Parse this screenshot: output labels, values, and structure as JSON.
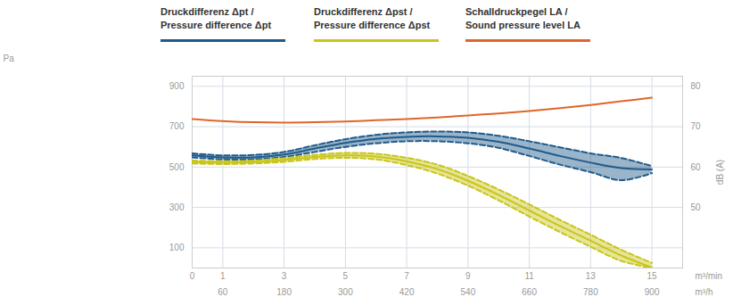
{
  "chart_data": {
    "type": "line",
    "x": [
      0,
      1,
      2,
      3,
      4,
      5,
      6,
      7,
      8,
      9,
      10,
      11,
      12,
      13,
      14,
      15
    ],
    "xlim": [
      0,
      16
    ],
    "xticks": [
      0,
      1,
      3,
      5,
      7,
      9,
      11,
      13,
      15
    ],
    "xlabel": "m³/min",
    "x2lim": [
      0,
      960
    ],
    "x2ticks": [
      60,
      180,
      300,
      420,
      540,
      660,
      780,
      900
    ],
    "x2label": "m³/h",
    "ylabel": "Pa",
    "ylim": [
      0,
      950
    ],
    "yticks": [
      100,
      300,
      500,
      700,
      900
    ],
    "y2label": "dB (A)",
    "y2lim": [
      35,
      82.5
    ],
    "y2ticks": [
      50,
      60,
      70,
      80
    ],
    "grid": true,
    "series": [
      {
        "name": "Druckdifferenz Δpt / Pressure difference Δpt",
        "color": "#1f5a8a",
        "values": [
          558,
          548,
          548,
          562,
          592,
          620,
          640,
          650,
          652,
          645,
          625,
          592,
          555,
          522,
          495,
          488
        ],
        "lower": [
          548,
          538,
          538,
          550,
          575,
          600,
          618,
          628,
          628,
          618,
          595,
          555,
          512,
          475,
          435,
          470
        ],
        "upper": [
          568,
          558,
          560,
          575,
          608,
          638,
          660,
          672,
          676,
          672,
          655,
          628,
          598,
          568,
          545,
          505
        ]
      },
      {
        "name": "Druckdifferenz Δpst / Pressure difference Δpst",
        "color": "#c8c51a",
        "values": [
          525,
          522,
          525,
          535,
          550,
          558,
          552,
          528,
          490,
          432,
          362,
          285,
          208,
          135,
          62,
          2
        ],
        "lower": [
          518,
          515,
          518,
          526,
          540,
          546,
          538,
          510,
          468,
          408,
          335,
          255,
          178,
          105,
          35,
          0
        ],
        "upper": [
          532,
          529,
          532,
          544,
          560,
          570,
          566,
          546,
          512,
          456,
          389,
          315,
          238,
          165,
          90,
          25
        ]
      },
      {
        "name": "Schalldruckpegel LA / Sound pressure level LA",
        "color": "#e0652a",
        "axis": "y2",
        "values": [
          71.9,
          71.4,
          71.1,
          71,
          71.1,
          71.3,
          71.6,
          71.9,
          72.3,
          72.8,
          73.3,
          73.9,
          74.6,
          75.4,
          76.3,
          77.2
        ]
      }
    ]
  }
}
